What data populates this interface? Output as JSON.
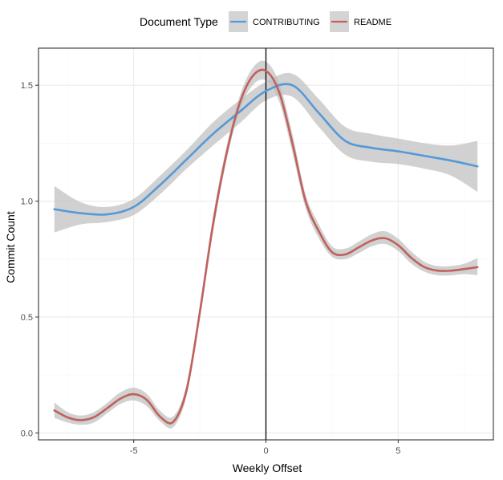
{
  "chart_data": {
    "type": "line",
    "title": "",
    "xlabel": "Weekly Offset",
    "ylabel": "Commit Count",
    "xlim": [
      -8.6,
      8.6
    ],
    "ylim": [
      -0.03,
      1.66
    ],
    "x_ticks": [
      -5,
      0,
      5
    ],
    "x_tick_labels": [
      "-5",
      "0",
      "5"
    ],
    "y_ticks": [
      0.0,
      0.5,
      1.0,
      1.5
    ],
    "y_tick_labels": [
      "0.0",
      "0.5",
      "1.0",
      "1.5"
    ],
    "grid": true,
    "vertical_reference_line": 0,
    "legend": {
      "title": "Document Type",
      "position": "top",
      "entries": [
        "CONTRIBUTING",
        "README"
      ]
    },
    "series": [
      {
        "name": "CONTRIBUTING",
        "color": "#5599d9",
        "x": [
          -8,
          -7,
          -6,
          -5,
          -4,
          -3,
          -2,
          -1,
          0,
          1,
          2,
          3,
          4,
          5,
          6,
          7,
          8
        ],
        "y": [
          0.965,
          0.948,
          0.943,
          0.975,
          1.07,
          1.18,
          1.29,
          1.385,
          1.475,
          1.5,
          1.38,
          1.26,
          1.23,
          1.215,
          1.195,
          1.175,
          1.15
        ],
        "ci_lower": [
          0.865,
          0.9,
          0.91,
          0.94,
          1.03,
          1.14,
          1.24,
          1.335,
          1.435,
          1.45,
          1.32,
          1.2,
          1.17,
          1.16,
          1.14,
          1.11,
          1.04
        ],
        "ci_upper": [
          1.065,
          0.995,
          0.975,
          1.01,
          1.11,
          1.22,
          1.34,
          1.435,
          1.515,
          1.55,
          1.44,
          1.32,
          1.29,
          1.27,
          1.25,
          1.24,
          1.26
        ]
      },
      {
        "name": "README",
        "color": "#c0615d",
        "x": [
          -8,
          -7.5,
          -7,
          -6.5,
          -6,
          -5.5,
          -5,
          -4.5,
          -4,
          -3.5,
          -3,
          -2.5,
          -2,
          -1.5,
          -1,
          -0.5,
          0,
          0.5,
          1,
          1.5,
          2,
          2.5,
          3,
          3.5,
          4,
          4.5,
          5,
          5.5,
          6,
          6.5,
          7,
          7.5,
          8
        ],
        "y": [
          0.097,
          0.067,
          0.055,
          0.068,
          0.107,
          0.148,
          0.167,
          0.142,
          0.07,
          0.048,
          0.185,
          0.52,
          0.9,
          1.2,
          1.42,
          1.54,
          1.562,
          1.47,
          1.25,
          1.0,
          0.87,
          0.78,
          0.77,
          0.8,
          0.83,
          0.84,
          0.81,
          0.755,
          0.715,
          0.7,
          0.7,
          0.707,
          0.715
        ],
        "ci_lower": [
          0.065,
          0.045,
          0.035,
          0.045,
          0.085,
          0.125,
          0.14,
          0.115,
          0.05,
          0.025,
          0.16,
          0.49,
          0.865,
          1.17,
          1.39,
          1.5,
          1.52,
          1.43,
          1.21,
          0.97,
          0.84,
          0.76,
          0.75,
          0.775,
          0.805,
          0.815,
          0.785,
          0.73,
          0.695,
          0.68,
          0.68,
          0.685,
          0.68
        ],
        "ci_upper": [
          0.132,
          0.09,
          0.075,
          0.09,
          0.13,
          0.175,
          0.195,
          0.168,
          0.095,
          0.072,
          0.21,
          0.55,
          0.935,
          1.23,
          1.45,
          1.575,
          1.602,
          1.51,
          1.29,
          1.03,
          0.9,
          0.805,
          0.795,
          0.825,
          0.857,
          0.87,
          0.838,
          0.782,
          0.738,
          0.72,
          0.72,
          0.73,
          0.755
        ]
      }
    ]
  },
  "style": {
    "panel_border": "#333333",
    "grid_major": "#ebebeb",
    "grid_minor": "#f5f5f5",
    "ribbon": "#bebebe",
    "ref_line": "#000000"
  }
}
